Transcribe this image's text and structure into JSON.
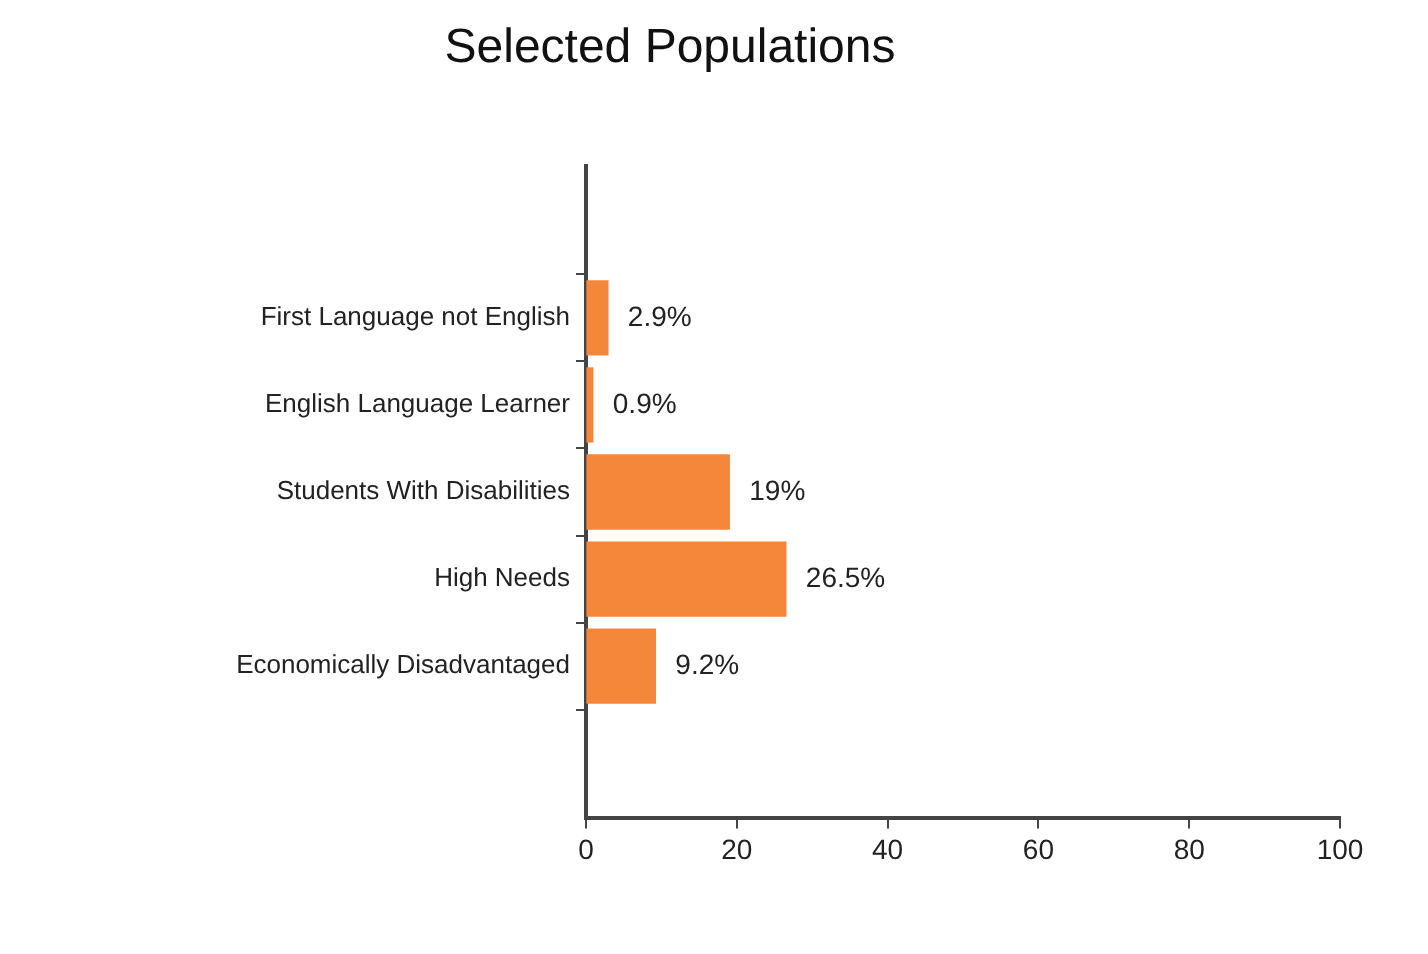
{
  "chart_data": {
    "type": "bar",
    "orientation": "horizontal",
    "title": "Selected Populations",
    "categories": [
      "First Language not English",
      "English Language Learner",
      "Students With Disabilities",
      "High Needs",
      "Economically Disadvantaged"
    ],
    "values": [
      2.9,
      0.9,
      19,
      26.5,
      9.2
    ],
    "value_labels": [
      "2.9%",
      "0.9%",
      "19%",
      "26.5%",
      "9.2%"
    ],
    "color": "#f5873a",
    "xlim": [
      0,
      100
    ],
    "xticks": [
      0,
      20,
      40,
      60,
      80,
      100
    ],
    "grid": false,
    "legend": false
  }
}
